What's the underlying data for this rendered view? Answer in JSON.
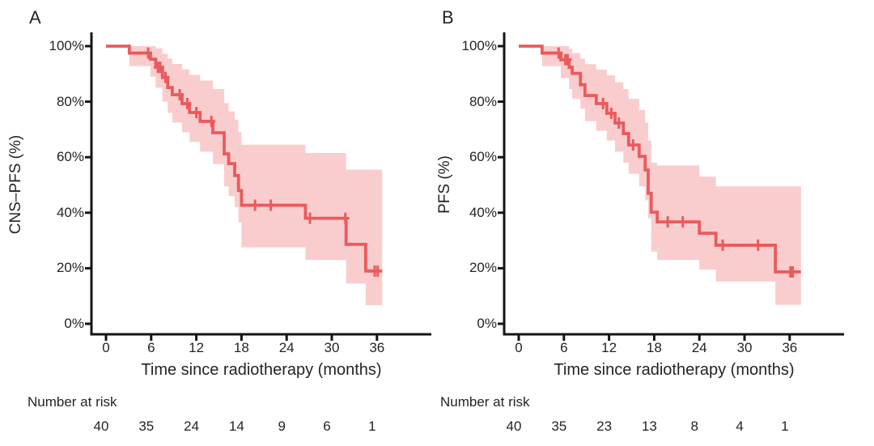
{
  "figure": {
    "background": "#ffffff",
    "colors": {
      "line": "#eb5a5b",
      "band": "#f9cdce",
      "axis": "#141414",
      "text": "#242424"
    }
  },
  "panels": [
    {
      "letter": "A",
      "y_label": "CNS–PFS (%)",
      "x_label": "Time since radiotherapy (months)",
      "risk_label": "Number at risk"
    },
    {
      "letter": "B",
      "y_label": "PFS (%)",
      "x_label": "Time since radiotherapy (months)",
      "risk_label": "Number at risk"
    }
  ],
  "chart_data": [
    {
      "type": "line",
      "subtype": "kaplan-meier-step",
      "panel": "A",
      "title": "",
      "xlabel": "Time since radiotherapy (months)",
      "ylabel": "CNS–PFS (%)",
      "xlim": [
        0,
        39
      ],
      "ylim": [
        0,
        100
      ],
      "grid": false,
      "legend": "none",
      "xticks": [
        0,
        6,
        12,
        18,
        24,
        30,
        36
      ],
      "xtick_labels": [
        "0",
        "6",
        "12",
        "18",
        "24",
        "30",
        "36"
      ],
      "yticks_percent": [
        0,
        20,
        40,
        60,
        80,
        100
      ],
      "ytick_labels": [
        "0%",
        "20%",
        "40%",
        "60%",
        "80%",
        "100%"
      ],
      "line_color": "#eb5a5b",
      "band_color": "#f9cdce",
      "end_time": 36.7,
      "steps": [
        [
          0,
          100
        ],
        [
          3.1,
          97.5
        ],
        [
          5.9,
          95.3
        ],
        [
          6.6,
          92.4
        ],
        [
          7.5,
          88.7
        ],
        [
          8.2,
          85.1
        ],
        [
          8.8,
          82.5
        ],
        [
          10.1,
          79.3
        ],
        [
          11.1,
          76.1
        ],
        [
          12.5,
          72.9
        ],
        [
          14.2,
          68.8
        ],
        [
          15.7,
          61.2
        ],
        [
          16.3,
          57.7
        ],
        [
          17.1,
          53.4
        ],
        [
          17.6,
          48.0
        ],
        [
          18.0,
          42.7
        ],
        [
          26.5,
          38.0
        ],
        [
          31.9,
          28.6
        ],
        [
          34.5,
          19.0
        ]
      ],
      "censor_times": [
        5.6,
        6.9,
        7.2,
        7.9,
        9.8,
        10.8,
        12.0,
        14.0,
        19.8,
        21.9,
        27.1,
        31.8,
        35.7,
        36.1
      ],
      "band": [
        [
          3.1,
          92.8,
          100
        ],
        [
          5.9,
          89,
          100
        ],
        [
          6.6,
          85,
          99.2
        ],
        [
          7.5,
          80,
          97.3
        ],
        [
          8.2,
          76,
          95.5
        ],
        [
          8.8,
          72.5,
          93.6
        ],
        [
          10.1,
          69,
          91.6
        ],
        [
          11.1,
          65.5,
          89.6
        ],
        [
          12.5,
          62,
          87.6
        ],
        [
          14.2,
          57.5,
          84.6
        ],
        [
          15.7,
          49.5,
          79.5
        ],
        [
          16.3,
          46,
          76.5
        ],
        [
          17.1,
          42,
          73.5
        ],
        [
          17.6,
          36.5,
          69
        ],
        [
          18.0,
          27.5,
          64.5
        ],
        [
          26.5,
          23,
          61.5
        ],
        [
          31.9,
          14.5,
          55.5
        ],
        [
          34.5,
          6.7,
          55.5
        ]
      ],
      "number_at_risk": {
        "times": [
          0,
          6,
          12,
          18,
          24,
          30,
          36
        ],
        "values": [
          "40",
          "35",
          "24",
          "14",
          "9",
          "6",
          "1"
        ]
      }
    },
    {
      "type": "line",
      "subtype": "kaplan-meier-step",
      "panel": "B",
      "title": "",
      "xlabel": "Time since radiotherapy (months)",
      "ylabel": "PFS (%)",
      "xlim": [
        0,
        39
      ],
      "ylim": [
        0,
        100
      ],
      "grid": false,
      "legend": "none",
      "xticks": [
        0,
        6,
        12,
        18,
        24,
        30,
        36
      ],
      "xtick_labels": [
        "0",
        "6",
        "12",
        "18",
        "24",
        "30",
        "36"
      ],
      "yticks_percent": [
        0,
        20,
        40,
        60,
        80,
        100
      ],
      "ytick_labels": [
        "0%",
        "20%",
        "40%",
        "60%",
        "80%",
        "100%"
      ],
      "line_color": "#eb5a5b",
      "band_color": "#f9cdce",
      "end_time": 37.5,
      "steps": [
        [
          0,
          100
        ],
        [
          3.1,
          97.5
        ],
        [
          5.6,
          95.1
        ],
        [
          6.7,
          92.4
        ],
        [
          7.1,
          90.2
        ],
        [
          8.2,
          86.1
        ],
        [
          8.8,
          82.2
        ],
        [
          10.3,
          79.3
        ],
        [
          11.7,
          75.8
        ],
        [
          12.8,
          72.3
        ],
        [
          13.9,
          68.5
        ],
        [
          14.6,
          64.4
        ],
        [
          16.0,
          60.3
        ],
        [
          16.8,
          55.4
        ],
        [
          17.2,
          47.0
        ],
        [
          17.6,
          40.2
        ],
        [
          18.4,
          36.7
        ],
        [
          24.0,
          32.6
        ],
        [
          26.2,
          28.3
        ],
        [
          34.1,
          18.7
        ]
      ],
      "censor_times": [
        5.3,
        6.2,
        6.5,
        11.2,
        12.3,
        13.3,
        15.2,
        19.8,
        21.8,
        27.1,
        31.8,
        36.1,
        36.4
      ],
      "band": [
        [
          3.1,
          92.8,
          100
        ],
        [
          5.6,
          88.5,
          100
        ],
        [
          6.7,
          84.5,
          99
        ],
        [
          7.1,
          81,
          97.5
        ],
        [
          8.2,
          77.5,
          95.5
        ],
        [
          8.8,
          73,
          93.5
        ],
        [
          10.3,
          69.5,
          91.5
        ],
        [
          11.7,
          66,
          89.5
        ],
        [
          12.8,
          62,
          87
        ],
        [
          13.9,
          58,
          84.5
        ],
        [
          14.6,
          54,
          81
        ],
        [
          16.0,
          49.5,
          77
        ],
        [
          16.8,
          44.5,
          72.5
        ],
        [
          17.2,
          38,
          66
        ],
        [
          17.6,
          26,
          58
        ],
        [
          18.4,
          23,
          57
        ],
        [
          24.0,
          19.5,
          53
        ],
        [
          26.2,
          15.2,
          49.5
        ],
        [
          34.1,
          6.8,
          49.5
        ]
      ],
      "number_at_risk": {
        "times": [
          0,
          6,
          12,
          18,
          24,
          30,
          36
        ],
        "values": [
          "40",
          "35",
          "23",
          "13",
          "8",
          "4",
          "1"
        ]
      }
    }
  ]
}
